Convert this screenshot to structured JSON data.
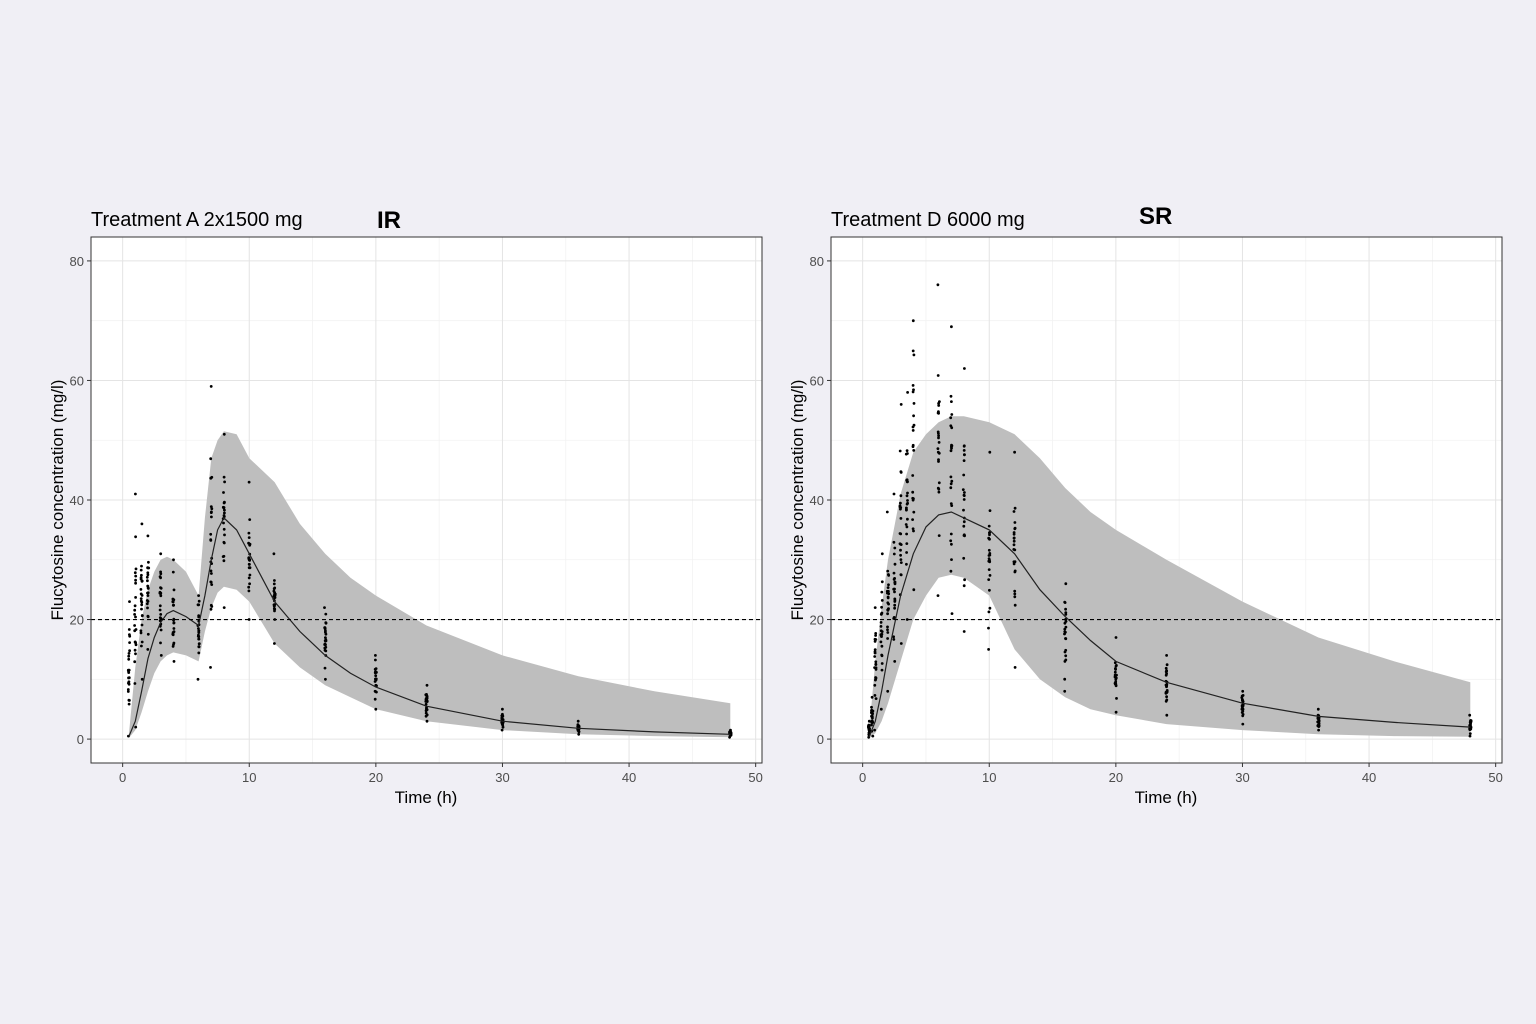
{
  "chart_data": [
    {
      "type": "line",
      "title": "Treatment A 2x1500 mg",
      "tag": "IR",
      "xlabel": "Time (h)",
      "ylabel": "Flucytosine concentration (mg/l)",
      "xlim": [
        -2.5,
        50.5
      ],
      "ylim": [
        -4,
        84
      ],
      "xticks": [
        0,
        10,
        20,
        30,
        40,
        50
      ],
      "yticks": [
        0,
        20,
        40,
        60,
        80
      ],
      "xminor": [
        5,
        15,
        25,
        35,
        45
      ],
      "yminor": [
        10,
        30,
        50,
        70
      ],
      "grid": true,
      "threshold": 20,
      "series": [
        {
          "kind": "median-line",
          "x": [
            0.5,
            1,
            1.5,
            2,
            2.5,
            3,
            3.5,
            4,
            5,
            6,
            6.5,
            7,
            7.5,
            8,
            9,
            10,
            12,
            14,
            16,
            18,
            20,
            24,
            30,
            36,
            42,
            48
          ],
          "y": [
            0.5,
            3,
            8,
            13.5,
            17,
            19.5,
            21,
            21.5,
            20.5,
            19,
            24,
            30,
            35,
            37,
            35,
            31,
            23,
            18,
            14,
            11,
            8.7,
            5.5,
            3,
            1.8,
            1.2,
            0.8
          ]
        },
        {
          "kind": "prediction-interval",
          "x": [
            0.5,
            1,
            1.5,
            2,
            2.5,
            3,
            3.5,
            4,
            5,
            6,
            6.5,
            7,
            7.5,
            8,
            9,
            10,
            12,
            14,
            16,
            18,
            20,
            24,
            30,
            36,
            42,
            48
          ],
          "upper": [
            1,
            12,
            20,
            25,
            28,
            30,
            30.5,
            30,
            28,
            24,
            37,
            47,
            50,
            51.5,
            51,
            47,
            43,
            36,
            31,
            27,
            24,
            19,
            14,
            10.5,
            8,
            6
          ],
          "lower": [
            0.2,
            1.5,
            4.5,
            8,
            11,
            13,
            14,
            14.5,
            14,
            13,
            18,
            22,
            24.5,
            25.5,
            25,
            23,
            16,
            12,
            9,
            7,
            5,
            3,
            1.5,
            0.8,
            0.5,
            0.3
          ]
        },
        {
          "kind": "observations",
          "times": [
            0.5,
            1,
            1.5,
            2,
            3,
            4,
            6,
            7,
            8,
            10,
            12,
            16,
            20,
            24,
            30,
            36,
            48
          ],
          "lows": [
            0.5,
            2,
            10,
            15,
            14,
            13,
            10,
            12,
            22,
            20,
            16,
            10,
            5,
            3,
            1.5,
            0.8,
            0.3
          ],
          "highs": [
            23,
            41,
            36,
            34,
            31,
            30,
            24,
            59,
            51,
            43,
            31,
            22,
            14,
            9,
            5,
            3,
            1.5
          ]
        }
      ]
    },
    {
      "type": "line",
      "title": "Treatment D 6000 mg",
      "tag": "SR",
      "xlabel": "Time (h)",
      "ylabel": "Flucytosine concentration (mg/l)",
      "xlim": [
        -2.5,
        50.5
      ],
      "ylim": [
        -4,
        84
      ],
      "xticks": [
        0,
        10,
        20,
        30,
        40,
        50
      ],
      "yticks": [
        0,
        20,
        40,
        60,
        80
      ],
      "xminor": [
        5,
        15,
        25,
        35,
        45
      ],
      "yminor": [
        10,
        30,
        50,
        70
      ],
      "grid": true,
      "threshold": 20,
      "series": [
        {
          "kind": "median-line",
          "x": [
            0.5,
            1,
            1.5,
            2,
            3,
            4,
            5,
            6,
            7,
            8,
            10,
            12,
            14,
            16,
            18,
            20,
            24,
            30,
            36,
            42,
            48
          ],
          "y": [
            0.3,
            3,
            8,
            14,
            24,
            31,
            35.5,
            37.5,
            38,
            37,
            35,
            31,
            25,
            20.5,
            16.5,
            13,
            9.5,
            6,
            3.8,
            2.8,
            2
          ]
        },
        {
          "kind": "prediction-interval",
          "x": [
            0.5,
            1,
            1.5,
            2,
            3,
            4,
            5,
            6,
            7,
            8,
            10,
            12,
            14,
            16,
            18,
            20,
            24,
            30,
            36,
            42,
            48
          ],
          "upper": [
            1,
            13,
            22,
            30,
            41,
            48,
            51,
            53,
            54,
            54,
            53,
            51,
            47,
            42,
            38,
            35,
            30,
            23,
            17,
            13,
            9.5
          ],
          "lower": [
            0.1,
            1,
            3,
            6,
            13,
            20,
            24,
            27,
            27.5,
            27,
            24,
            15,
            10,
            7,
            5,
            4,
            2.5,
            1.5,
            0.8,
            0.5,
            0.4
          ]
        },
        {
          "kind": "observations",
          "times": [
            0.5,
            0.75,
            1,
            1.5,
            2,
            2.5,
            3,
            3.5,
            4,
            6,
            7,
            8,
            10,
            12,
            16,
            20,
            24,
            30,
            36,
            48
          ],
          "lows": [
            0.3,
            0.5,
            1.5,
            5,
            8,
            13,
            16,
            20,
            25,
            24,
            21,
            18,
            15,
            12,
            8,
            4.5,
            4,
            2.5,
            1.5,
            0.5
          ],
          "highs": [
            3,
            7,
            22,
            31,
            38,
            41,
            56,
            58,
            70,
            76,
            69,
            62,
            48,
            48,
            26,
            17,
            14,
            8,
            5,
            4
          ]
        }
      ]
    }
  ]
}
